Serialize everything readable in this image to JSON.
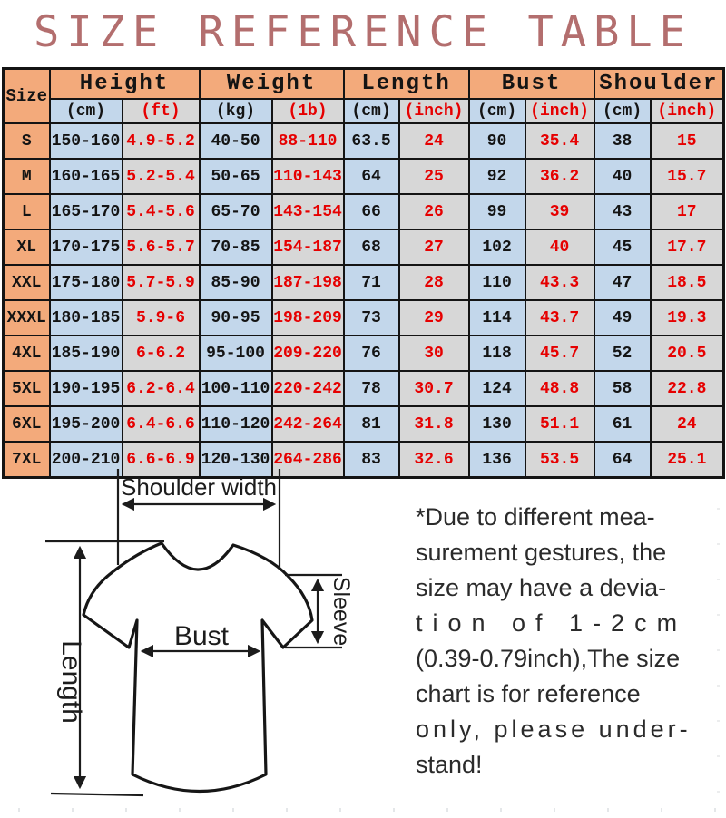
{
  "title": "SIZE REFERENCE TABLE",
  "table": {
    "corner_label": "Size",
    "groups": [
      {
        "label": "Height",
        "units": [
          "(cm)",
          "(ft)"
        ]
      },
      {
        "label": "Weight",
        "units": [
          "(kg)",
          "(1b)"
        ]
      },
      {
        "label": "Length",
        "units": [
          "(cm)",
          "(inch)"
        ]
      },
      {
        "label": "Bust",
        "units": [
          "(cm)",
          "(inch)"
        ]
      },
      {
        "label": "Shoulder",
        "units": [
          "(cm)",
          "(inch)"
        ]
      }
    ],
    "rows": [
      {
        "size": "S",
        "values": [
          "150-160",
          "4.9-5.2",
          "40-50",
          "88-110",
          "63.5",
          "24",
          "90",
          "35.4",
          "38",
          "15"
        ]
      },
      {
        "size": "M",
        "values": [
          "160-165",
          "5.2-5.4",
          "50-65",
          "110-143",
          "64",
          "25",
          "92",
          "36.2",
          "40",
          "15.7"
        ]
      },
      {
        "size": "L",
        "values": [
          "165-170",
          "5.4-5.6",
          "65-70",
          "143-154",
          "66",
          "26",
          "99",
          "39",
          "43",
          "17"
        ]
      },
      {
        "size": "XL",
        "values": [
          "170-175",
          "5.6-5.7",
          "70-85",
          "154-187",
          "68",
          "27",
          "102",
          "40",
          "45",
          "17.7"
        ]
      },
      {
        "size": "XXL",
        "values": [
          "175-180",
          "5.7-5.9",
          "85-90",
          "187-198",
          "71",
          "28",
          "110",
          "43.3",
          "47",
          "18.5"
        ]
      },
      {
        "size": "XXXL",
        "values": [
          "180-185",
          "5.9-6",
          "90-95",
          "198-209",
          "73",
          "29",
          "114",
          "43.7",
          "49",
          "19.3"
        ]
      },
      {
        "size": "4XL",
        "values": [
          "185-190",
          "6-6.2",
          "95-100",
          "209-220",
          "76",
          "30",
          "118",
          "45.7",
          "52",
          "20.5"
        ]
      },
      {
        "size": "5XL",
        "values": [
          "190-195",
          "6.2-6.4",
          "100-110",
          "220-242",
          "78",
          "30.7",
          "124",
          "48.8",
          "58",
          "22.8"
        ]
      },
      {
        "size": "6XL",
        "values": [
          "195-200",
          "6.4-6.6",
          "110-120",
          "242-264",
          "81",
          "31.8",
          "130",
          "51.1",
          "61",
          "24"
        ]
      },
      {
        "size": "7XL",
        "values": [
          "200-210",
          "6.6-6.9",
          "120-130",
          "264-286",
          "83",
          "32.6",
          "136",
          "53.5",
          "64",
          "25.1"
        ]
      }
    ]
  },
  "diagram": {
    "shoulder_label": "Shoulder width",
    "bust_label": "Bust",
    "sleeve_label": "Sleeve",
    "length_label": "Length"
  },
  "note": {
    "lines": [
      "*Due to different mea-",
      "surement gestures, the",
      "size may have a devia-",
      "tion of 1-2cm",
      "(0.39-0.79inch),The size",
      "chart is for reference",
      "only, please under-",
      "stand!"
    ]
  },
  "colors": {
    "header_orange": "#f3aa7b",
    "cell_blue": "#c3d7eb",
    "cell_gray": "#d7d7d7",
    "accent_red": "#e60000",
    "title_rose": "#b36e6e",
    "line_black": "#141414"
  }
}
